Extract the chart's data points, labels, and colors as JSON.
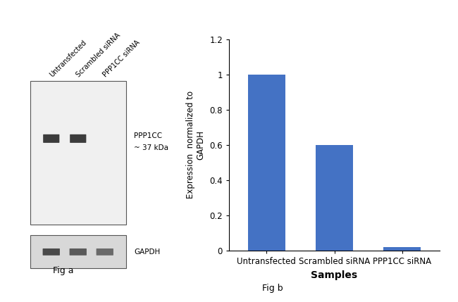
{
  "categories": [
    "Untransfected",
    "Scrambled siRNA",
    "PPP1CC siRNA"
  ],
  "values": [
    1.0,
    0.6,
    0.02
  ],
  "bar_color": "#4472C4",
  "ylabel": "Expression  normalized to\nGAPDH",
  "xlabel": "Samples",
  "ylim": [
    0,
    1.2
  ],
  "yticks": [
    0,
    0.2,
    0.4,
    0.6,
    0.8,
    1.0,
    1.2
  ],
  "fig_a_label": "Fig a",
  "fig_b_label": "Fig b",
  "wb_label_ppp1cc": "PPP1CC\n~ 37 kDa",
  "wb_label_gapdh": "GAPDH",
  "lane_labels": [
    "Untransfected",
    "Scrambled siRNA",
    "PPP1CC siRNA"
  ],
  "background_color": "#ffffff",
  "bar_width": 0.55,
  "xlabel_fontsize": 10,
  "ylabel_fontsize": 8.5,
  "tick_fontsize": 8.5,
  "label_fontsize": 9,
  "wb_gel_color": "#f0f0f0",
  "wb_gapdh_color": "#d8d8d8",
  "band_color_ppp": "#3c3c3c",
  "band_color_gapdh_1": "#4a4a4a",
  "band_color_gapdh_2": "#5a5a5a",
  "band_color_gapdh_3": "#6a6a6a"
}
